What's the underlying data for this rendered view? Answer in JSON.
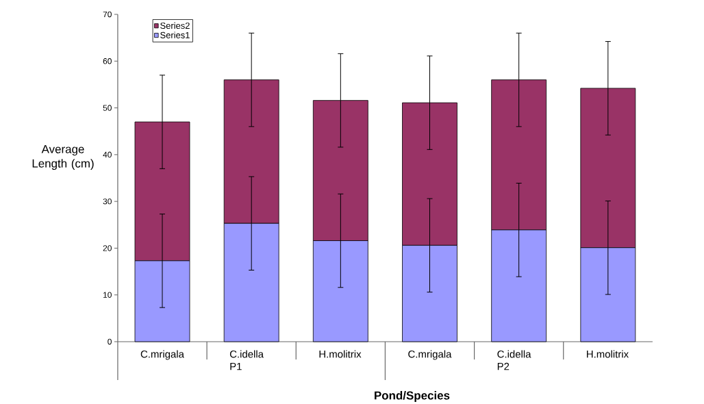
{
  "chart_data": {
    "type": "bar",
    "stacked": true,
    "xlabel": "Pond/Species",
    "ylabel": "Average Length (cm)",
    "categories": [
      "C.mrigala",
      "C.idella P1",
      "H.molitrix",
      "C.mrigala",
      "C.idella P2",
      "H.molitrix"
    ],
    "series": [
      {
        "name": "Series1",
        "color": "#9999ff",
        "values": [
          17.3,
          25.3,
          21.6,
          20.6,
          23.9,
          20.1
        ],
        "errors": [
          10,
          10,
          10,
          10,
          10,
          10
        ]
      },
      {
        "name": "Series2",
        "color": "#993366",
        "values": [
          29.7,
          30.7,
          30.0,
          30.5,
          32.1,
          34.1
        ],
        "errors": [
          10,
          10,
          10,
          10,
          10,
          10
        ]
      }
    ],
    "ylim": [
      0,
      70
    ],
    "yticks": [
      0,
      10,
      20,
      30,
      40,
      50,
      60,
      70
    ],
    "grid": false,
    "legend": "top left"
  }
}
